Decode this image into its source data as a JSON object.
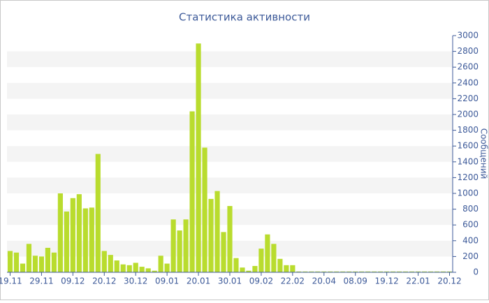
{
  "chart_data": {
    "type": "bar",
    "title": "Статистика активности",
    "y_label": "Сообщений",
    "categories": [
      "19.11",
      null,
      null,
      null,
      null,
      "29.11",
      null,
      null,
      null,
      null,
      "09.12",
      null,
      null,
      null,
      null,
      "20.12",
      null,
      null,
      null,
      null,
      "30.12",
      null,
      null,
      null,
      null,
      "09.01",
      null,
      null,
      null,
      null,
      "20.01",
      null,
      null,
      null,
      null,
      "30.01",
      null,
      null,
      null,
      null,
      "09.02",
      null,
      null,
      null,
      null,
      "22.02",
      null,
      null,
      null,
      null,
      "20.04",
      null,
      null,
      null,
      null,
      "08.09",
      null,
      null,
      null,
      null,
      "19.12",
      null,
      null,
      null,
      null,
      "22.01",
      null,
      null,
      null,
      null,
      "20.12"
    ],
    "values": [
      270,
      250,
      110,
      360,
      210,
      200,
      310,
      250,
      1000,
      770,
      940,
      990,
      810,
      820,
      1500,
      270,
      220,
      150,
      100,
      90,
      120,
      70,
      50,
      20,
      210,
      110,
      670,
      530,
      670,
      2040,
      2900,
      1580,
      930,
      1030,
      510,
      840,
      180,
      60,
      20,
      80,
      300,
      480,
      360,
      170,
      90,
      90,
      10,
      10,
      10,
      10,
      10,
      10,
      10,
      10,
      10,
      10,
      10,
      10,
      10,
      10,
      10,
      10,
      10,
      10,
      10,
      10,
      10,
      10,
      10,
      10,
      10
    ],
    "color": "#b9dc2e",
    "ylim": [
      0,
      3000
    ],
    "yticks": [
      0,
      200,
      400,
      600,
      800,
      1000,
      1200,
      1400,
      1600,
      1800,
      2000,
      2200,
      2400,
      2600,
      2800,
      3000
    ],
    "bands": true
  }
}
